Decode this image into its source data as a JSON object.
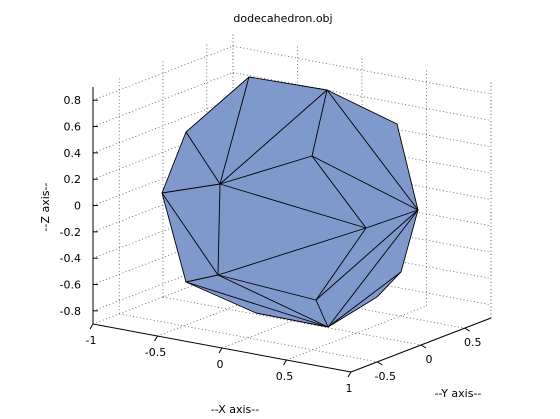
{
  "chart_data": {
    "type": "3d-surface",
    "title": "dodecahedron.obj",
    "xlabel": "--X axis--",
    "ylabel": "--Y axis--",
    "zlabel": "--Z axis--",
    "xticks": [
      "-1",
      "-0.5",
      "0",
      "0.5",
      "1"
    ],
    "yticks": [
      "-0.5",
      "0",
      "0.5"
    ],
    "zticks": [
      "-0.8",
      "-0.6",
      "-0.4",
      "-0.2",
      "0",
      "0.2",
      "0.4",
      "0.6",
      "0.8"
    ],
    "xlim": [
      -1,
      1
    ],
    "ylim": [
      -0.8,
      0.8
    ],
    "zlim": [
      -0.9,
      0.9
    ],
    "grid": true,
    "face_color": "#7f99cc",
    "edge_color": "#000000"
  }
}
